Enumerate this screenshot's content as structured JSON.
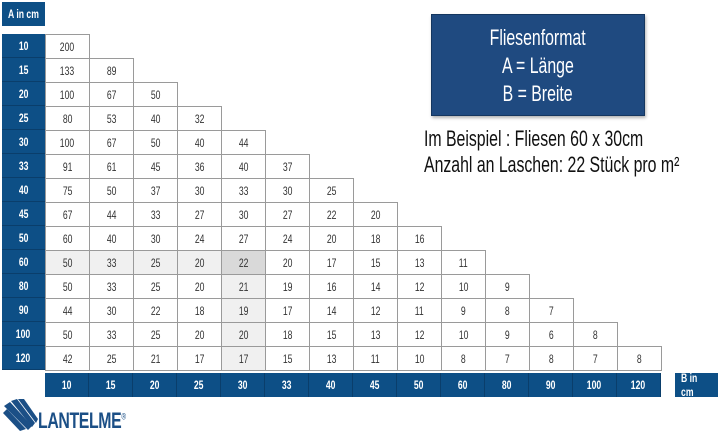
{
  "axis_a_label": "A in cm",
  "axis_b_label": "B in cm",
  "info_box": {
    "title": "Fliesenformat",
    "line_a": "A = Länge",
    "line_b": "B = Breite"
  },
  "example": {
    "line1": "Im Beispiel : Fliesen 60 x 30cm",
    "line2": "Anzahl an Laschen: 22 Stück pro m²"
  },
  "colors": {
    "header_blue": "#0d4f86",
    "box_blue": "#1f4a80",
    "highlight_light": "#f0f0f0",
    "highlight_dark": "#d9d9d9"
  },
  "table": {
    "columns_b": [
      "10",
      "15",
      "20",
      "25",
      "30",
      "33",
      "40",
      "45",
      "50",
      "60",
      "80",
      "90",
      "100",
      "120"
    ],
    "rows": [
      {
        "a": "10",
        "values": [
          "200"
        ]
      },
      {
        "a": "15",
        "values": [
          "133",
          "89"
        ]
      },
      {
        "a": "20",
        "values": [
          "100",
          "67",
          "50"
        ]
      },
      {
        "a": "25",
        "values": [
          "80",
          "53",
          "40",
          "32"
        ]
      },
      {
        "a": "30",
        "values": [
          "100",
          "67",
          "50",
          "40",
          "44"
        ]
      },
      {
        "a": "33",
        "values": [
          "91",
          "61",
          "45",
          "36",
          "40",
          "37"
        ]
      },
      {
        "a": "40",
        "values": [
          "75",
          "50",
          "37",
          "30",
          "33",
          "30",
          "25"
        ]
      },
      {
        "a": "45",
        "values": [
          "67",
          "44",
          "33",
          "27",
          "30",
          "27",
          "22",
          "20"
        ]
      },
      {
        "a": "50",
        "values": [
          "60",
          "40",
          "30",
          "24",
          "27",
          "24",
          "20",
          "18",
          "16"
        ]
      },
      {
        "a": "60",
        "values": [
          "50",
          "33",
          "25",
          "20",
          "22",
          "20",
          "17",
          "15",
          "13",
          "11"
        ]
      },
      {
        "a": "80",
        "values": [
          "50",
          "33",
          "25",
          "20",
          "21",
          "19",
          "16",
          "14",
          "12",
          "10",
          "9"
        ]
      },
      {
        "a": "90",
        "values": [
          "44",
          "30",
          "22",
          "18",
          "19",
          "17",
          "14",
          "12",
          "11",
          "9",
          "8",
          "7"
        ]
      },
      {
        "a": "100",
        "values": [
          "50",
          "33",
          "25",
          "20",
          "20",
          "18",
          "15",
          "13",
          "12",
          "10",
          "9",
          "6",
          "8"
        ]
      },
      {
        "a": "120",
        "values": [
          "42",
          "25",
          "21",
          "17",
          "17",
          "15",
          "13",
          "11",
          "10",
          "8",
          "7",
          "8",
          "7",
          "8"
        ]
      }
    ],
    "highlight": {
      "a": "60",
      "b": "30"
    }
  },
  "logo": {
    "text": "LANTELME",
    "mark": "®"
  }
}
